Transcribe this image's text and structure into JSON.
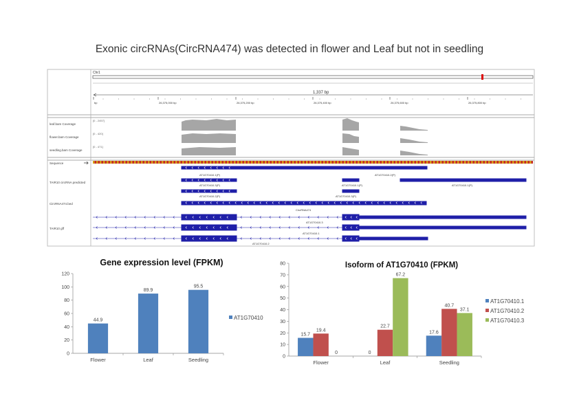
{
  "title": "Exonic circRNAs(CircRNA474) was detected in flower and Leaf but not in seedling",
  "browser": {
    "chrom": "Chr1",
    "span_label": "1,337 bp",
    "tick_labels": [
      "bp",
      "26,375,000 bp",
      "26,375,200 bp",
      "26,375,400 bp",
      "26,375,600 bp",
      "26,375,800 bp"
    ],
    "tracks": {
      "coverage": [
        {
          "name": "leaf.bam Coverage",
          "range": "[0 - 2457]"
        },
        {
          "name": "flower.bam Coverage",
          "range": "[0 - 420]"
        },
        {
          "name": "seedling.bam Coverage",
          "range": "[0 - 471]"
        }
      ],
      "sequence": "Sequence",
      "predicted": "TAIR10 circRNA predicted",
      "circ": "CircRNA474.bed",
      "gene": "TAIR10 gff"
    },
    "feature_labels": {
      "p1": "AT1G70410.1(P)",
      "p2": "AT1G70410.2(P)",
      "p3": "AT1G70410.3(P)",
      "p4": "AT1G70410.1(P)",
      "p5": "AT1G70410.1(P)",
      "p6": "AT1G70410.2(P)",
      "p7": "AT1G70410.3(P)",
      "circ": "CircRNA474",
      "g1": "AT1G70410.3",
      "g2": "AT1G70410.1",
      "g3": "AT1G70410.2"
    }
  },
  "chart_data": [
    {
      "type": "bar",
      "title": "Gene expression level (FPKM)",
      "categories": [
        "Flower",
        "Leaf",
        "Seedling"
      ],
      "series": [
        {
          "name": "AT1G70410",
          "color": "#4f81bd",
          "values": [
            44.9,
            89.9,
            95.5
          ]
        }
      ],
      "data_labels": [
        "44.9",
        "89.9",
        "95.5"
      ],
      "ylim": [
        0,
        120
      ],
      "yticks": [
        "0",
        "20",
        "40",
        "60",
        "80",
        "100",
        "120"
      ],
      "legend": "right"
    },
    {
      "type": "bar",
      "title": "Isoform of AT1G70410 (FPKM)",
      "categories": [
        "Flower",
        "Leaf",
        "Seedling"
      ],
      "series": [
        {
          "name": "AT1G70410.1",
          "color": "#4f81bd",
          "values": [
            15.7,
            0,
            17.6
          ],
          "labels": [
            "15.7",
            "0",
            "17.6"
          ]
        },
        {
          "name": "AT1G70410.2",
          "color": "#c0504d",
          "values": [
            19.4,
            22.7,
            40.7
          ],
          "labels": [
            "19.4",
            "22.7",
            "40.7"
          ]
        },
        {
          "name": "AT1G70410.3",
          "color": "#9bbb59",
          "values": [
            0,
            67.2,
            37.1
          ],
          "labels": [
            "0",
            "67.2",
            "37.1"
          ]
        }
      ],
      "ylim": [
        0,
        80
      ],
      "yticks": [
        "0",
        "10",
        "20",
        "30",
        "40",
        "50",
        "60",
        "70",
        "80"
      ],
      "legend": "right"
    }
  ]
}
